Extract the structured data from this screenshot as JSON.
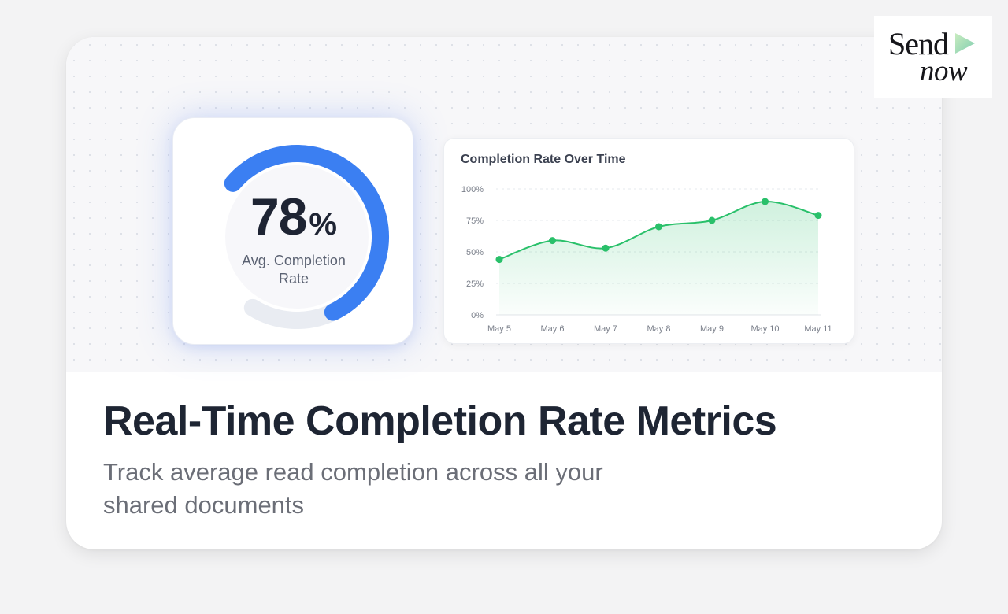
{
  "gauge": {
    "value": "78",
    "unit": "%",
    "label": "Avg. Completion Rate",
    "fraction": 0.78,
    "color": "#3b7ff2",
    "track_color": "#e9ecf2"
  },
  "chart_data": {
    "type": "area",
    "title": "Completion Rate Over Time",
    "categories": [
      "May 5",
      "May 6",
      "May 7",
      "May 8",
      "May 9",
      "May 10",
      "May 11"
    ],
    "values": [
      44,
      59,
      53,
      70,
      75,
      90,
      79
    ],
    "ylim": [
      0,
      100
    ],
    "yticks": [
      "0%",
      "25%",
      "50%",
      "75%",
      "100%"
    ],
    "grid": true,
    "line_color": "#29c06a"
  },
  "headline": "Real-Time Completion Rate Metrics",
  "subtitle": "Track average read completion across all your shared documents",
  "logo": {
    "word1": "Send",
    "word2": "now",
    "accent": "#9fd8a4"
  }
}
